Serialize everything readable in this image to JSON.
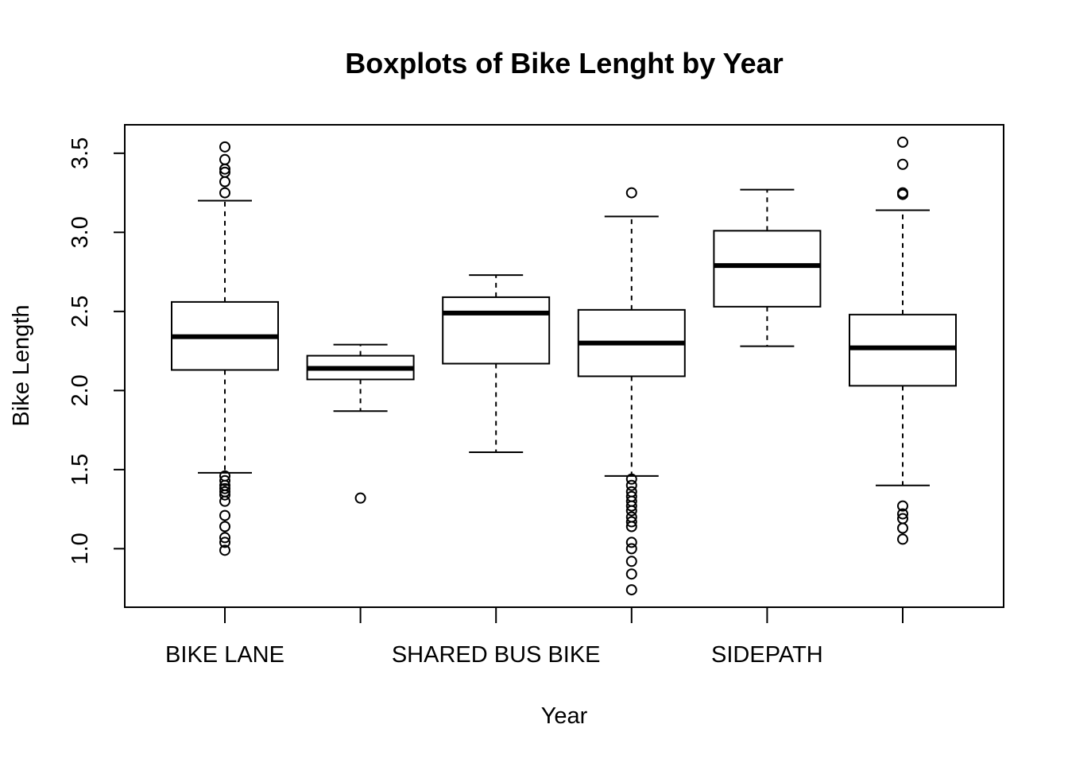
{
  "chart_data": {
    "type": "boxplot",
    "title": "Boxplots of Bike Lenght by Year",
    "xlabel": "Year",
    "ylabel": "Bike Length",
    "ylim": [
      0.63,
      3.68
    ],
    "yticks": [
      1.0,
      1.5,
      2.0,
      2.5,
      3.0,
      3.5
    ],
    "ytick_labels": [
      "1.0",
      "1.5",
      "2.0",
      "2.5",
      "3.0",
      "3.5"
    ],
    "categories": [
      "BIKE LANE",
      "",
      "SHARED BUS BIKE",
      "",
      "SIDEPATH",
      ""
    ],
    "grid": false,
    "box_color": "#000000",
    "boxes": [
      {
        "label": "BIKE LANE",
        "whisker_low": 1.48,
        "q1": 2.13,
        "median": 2.34,
        "q3": 2.56,
        "whisker_high": 3.2,
        "outliers": [
          3.54,
          3.46,
          3.4,
          3.38,
          3.32,
          3.25,
          1.46,
          1.43,
          1.4,
          1.38,
          1.36,
          1.34,
          1.3,
          1.21,
          1.14,
          1.07,
          1.04,
          0.99
        ]
      },
      {
        "label": "",
        "whisker_low": 1.87,
        "q1": 2.07,
        "median": 2.14,
        "q3": 2.22,
        "whisker_high": 2.29,
        "outliers": [
          1.32
        ]
      },
      {
        "label": "SHARED BUS BIKE",
        "whisker_low": 1.61,
        "q1": 2.17,
        "median": 2.49,
        "q3": 2.59,
        "whisker_high": 2.73,
        "outliers": []
      },
      {
        "label": "",
        "whisker_low": 1.46,
        "q1": 2.09,
        "median": 2.3,
        "q3": 2.51,
        "whisker_high": 3.1,
        "outliers": [
          3.25,
          1.44,
          1.4,
          1.36,
          1.33,
          1.3,
          1.27,
          1.24,
          1.2,
          1.17,
          1.14,
          1.04,
          1.0,
          0.92,
          0.84,
          0.74
        ]
      },
      {
        "label": "SIDEPATH",
        "whisker_low": 2.28,
        "q1": 2.53,
        "median": 2.79,
        "q3": 3.01,
        "whisker_high": 3.27,
        "outliers": []
      },
      {
        "label": "",
        "whisker_low": 1.4,
        "q1": 2.03,
        "median": 2.27,
        "q3": 2.48,
        "whisker_high": 3.14,
        "outliers": [
          3.57,
          3.43,
          3.25,
          3.24,
          1.27,
          1.22,
          1.19,
          1.13,
          1.06
        ]
      }
    ]
  }
}
